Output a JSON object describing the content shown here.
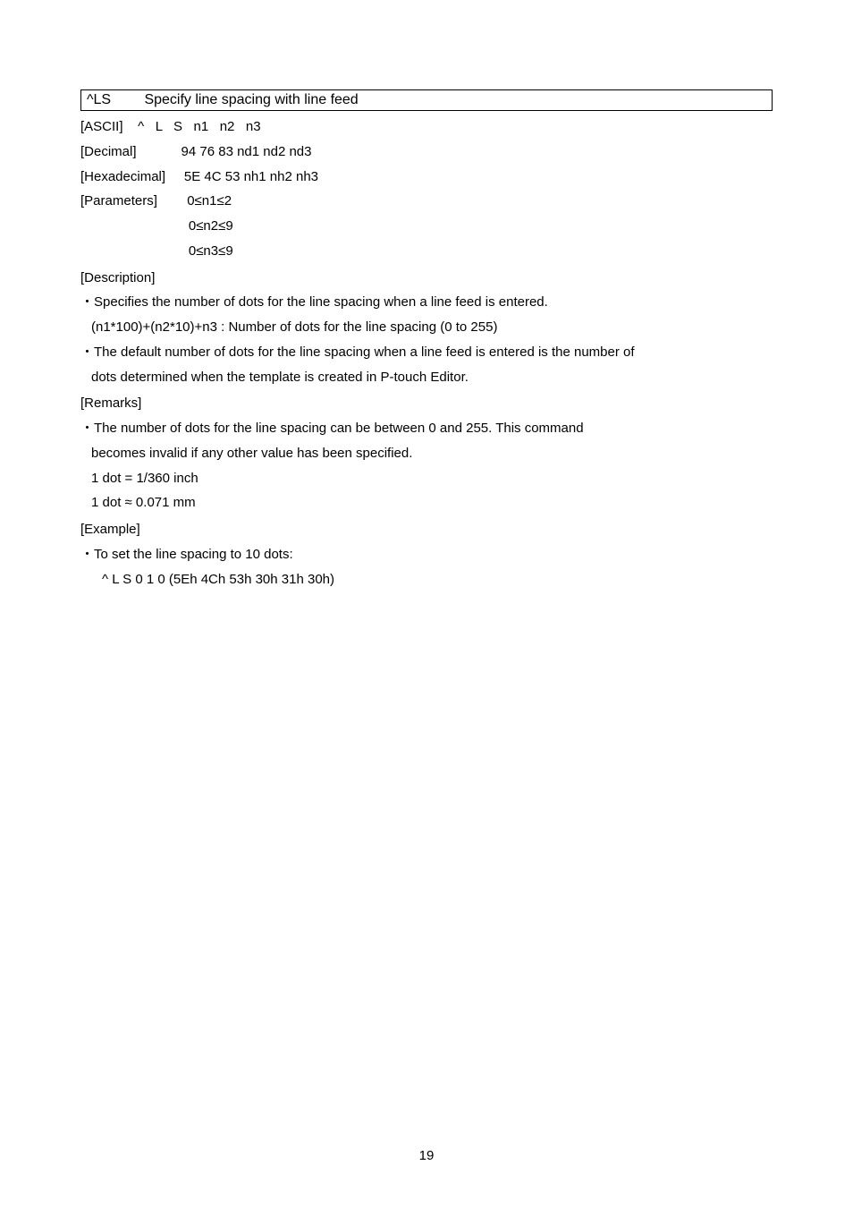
{
  "header": {
    "cmd": "^LS",
    "title": "Specify line spacing with line feed"
  },
  "params": {
    "ascii": "[ASCII]    ^   L   S   n1   n2   n3",
    "decimal": "[Decimal]            94 76 83 nd1 nd2 nd3",
    "hex": "[Hexadecimal]     5E 4C 53 nh1 nh2 nh3",
    "parameters1": "[Parameters]        0≤n1≤2",
    "parameters2": "                             0≤n2≤9",
    "parameters3": "                             0≤n3≤9"
  },
  "description": {
    "label": "[Description]",
    "bullet1": "・Specifies the number of dots for the line spacing when a line feed is entered.",
    "formula": " (n1*100)+(n2*10)+n3 : Number of dots for the line spacing (0 to 255)",
    "bullet2a": "・The default number of dots for the line spacing when a line feed is entered is the number of",
    "bullet2b": "dots determined when the template is created in P-touch Editor."
  },
  "remarks": {
    "label": "[Remarks]",
    "bullet1a": "・The  number  of  dots  for  the  line  spacing  can  be  between  0  and  255.  This  command",
    "bullet1b": "becomes invalid if any other value has been specified.",
    "dot1": "1 dot = 1/360 inch",
    "dot2": "1 dot ≈ 0.071 mm"
  },
  "example": {
    "label": "[Example]",
    "bullet1": "・To set the line spacing to 10 dots:",
    "code": "^ L S 0 1 0 (5Eh 4Ch 53h 30h 31h 30h)"
  },
  "page": "19",
  "styles": {
    "font_size_body": 15,
    "font_size_page": 15,
    "line_height": 1.85,
    "text_color": "#000000",
    "background_color": "#ffffff",
    "border_color": "#000000"
  }
}
